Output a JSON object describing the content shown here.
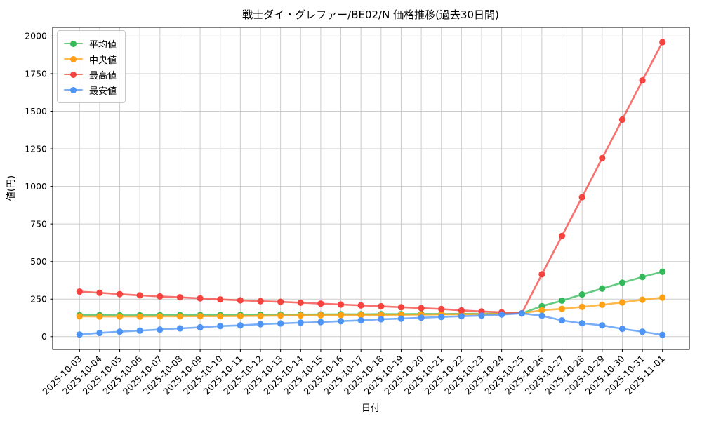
{
  "chart_data": {
    "type": "line",
    "title": "戦士ダイ・グレファー/BE02/N 価格推移(過去30日間)",
    "xlabel": "日付",
    "ylabel": "値(円)",
    "grid": true,
    "legend_position": "upper left",
    "ylim": [
      -85,
      2058
    ],
    "yticks": [
      0,
      250,
      500,
      750,
      1000,
      1250,
      1500,
      1750,
      2000
    ],
    "x": [
      "2025-10-03",
      "2025-10-04",
      "2025-10-05",
      "2025-10-06",
      "2025-10-07",
      "2025-10-08",
      "2025-10-09",
      "2025-10-10",
      "2025-10-11",
      "2025-10-12",
      "2025-10-13",
      "2025-10-14",
      "2025-10-15",
      "2025-10-16",
      "2025-10-17",
      "2025-10-18",
      "2025-10-19",
      "2025-10-20",
      "2025-10-21",
      "2025-10-22",
      "2025-10-23",
      "2025-10-24",
      "2025-10-25",
      "2025-10-26",
      "2025-10-27",
      "2025-10-28",
      "2025-10-29",
      "2025-10-30",
      "2025-10-31",
      "2025-11-01"
    ],
    "series": [
      {
        "name": "平均値",
        "color": "#34b95a",
        "values": [
          143,
          143,
          142,
          142,
          143,
          143,
          144,
          144,
          145,
          146,
          147,
          147,
          148,
          149,
          149,
          150,
          150,
          151,
          151,
          152,
          153,
          154,
          155,
          203,
          240,
          281,
          320,
          359,
          397,
          432
        ]
      },
      {
        "name": "中央値",
        "color": "#ffa114",
        "values": [
          135,
          134,
          134,
          134,
          135,
          135,
          136,
          136,
          137,
          138,
          140,
          141,
          142,
          143,
          144,
          145,
          146,
          147,
          148,
          149,
          150,
          152,
          155,
          176,
          185,
          198,
          212,
          228,
          246,
          260
        ]
      },
      {
        "name": "最高値",
        "color": "#f4433e",
        "values": [
          300,
          292,
          283,
          275,
          268,
          262,
          255,
          248,
          242,
          236,
          232,
          226,
          220,
          214,
          208,
          202,
          196,
          190,
          184,
          175,
          168,
          162,
          155,
          415,
          670,
          928,
          1188,
          1444,
          1705,
          1960
        ]
      },
      {
        "name": "最安値",
        "color": "#4d94f5",
        "values": [
          14,
          25,
          33,
          40,
          47,
          55,
          62,
          70,
          75,
          83,
          88,
          93,
          97,
          103,
          108,
          116,
          120,
          126,
          131,
          136,
          140,
          147,
          155,
          139,
          108,
          89,
          75,
          52,
          33,
          12
        ]
      }
    ]
  }
}
